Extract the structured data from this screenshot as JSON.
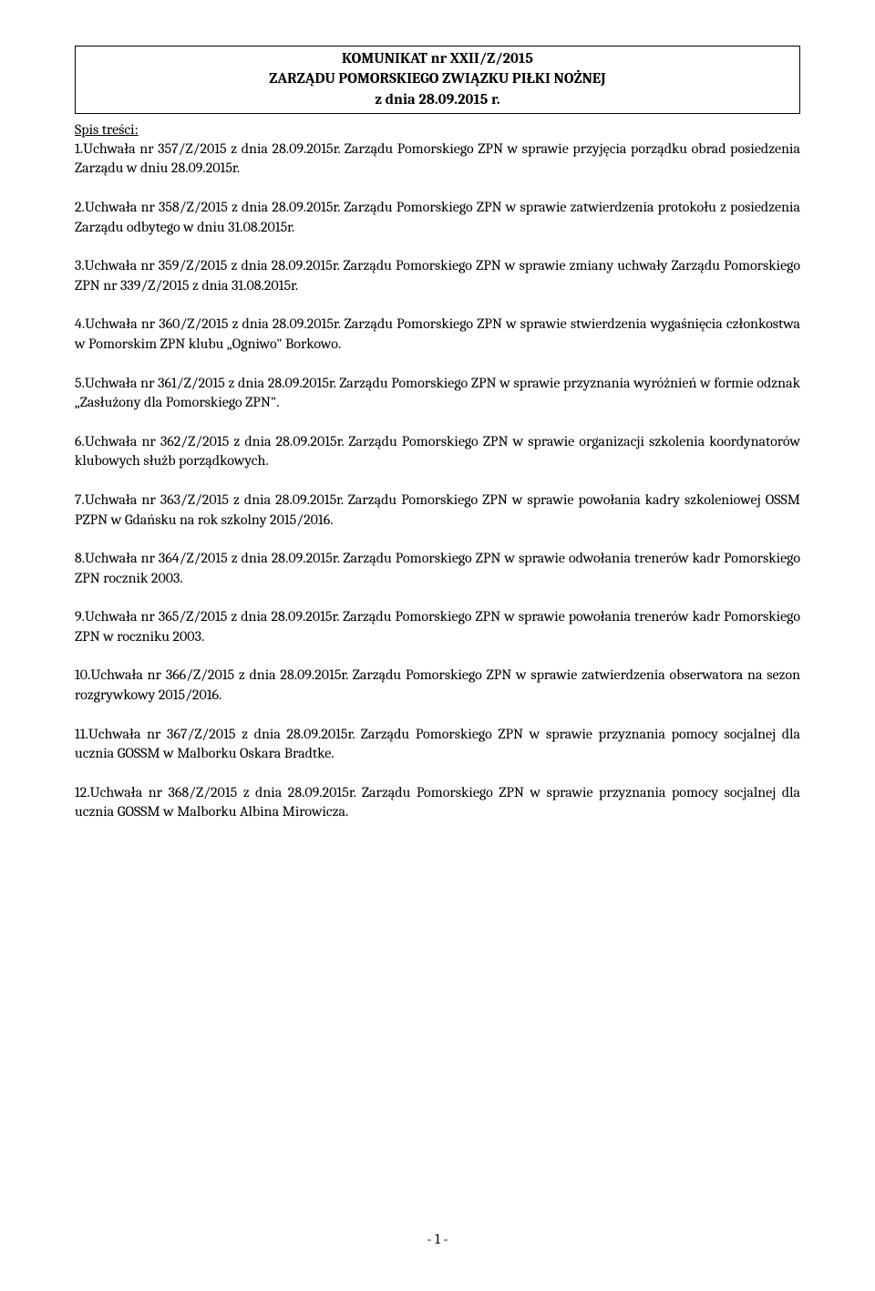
{
  "header": {
    "line1": "KOMUNIKAT nr XXII/Z/2015",
    "line2": "ZARZĄDU POMORSKIEGO ZWIĄZKU PIŁKI NOŻNEJ",
    "line3": "z dnia 28.09.2015 r."
  },
  "toc_title": "Spis treści:",
  "items": [
    "1.Uchwała nr 357/Z/2015 z dnia 28.09.2015r. Zarządu Pomorskiego ZPN w sprawie przyjęcia porządku obrad posiedzenia Zarządu w dniu 28.09.2015r.",
    "2.Uchwała nr 358/Z/2015 z dnia 28.09.2015r. Zarządu Pomorskiego ZPN w sprawie zatwierdzenia protokołu z posiedzenia Zarządu odbytego w dniu 31.08.2015r.",
    "3.Uchwała nr 359/Z/2015 z dnia 28.09.2015r. Zarządu Pomorskiego ZPN w sprawie zmiany uchwały Zarządu Pomorskiego ZPN nr 339/Z/2015 z dnia 31.08.2015r.",
    "4.Uchwała nr 360/Z/2015 z dnia 28.09.2015r. Zarządu Pomorskiego ZPN w sprawie stwierdzenia wygaśnięcia członkostwa w Pomorskim ZPN klubu „Ogniwo\" Borkowo.",
    "5.Uchwała nr 361/Z/2015 z dnia 28.09.2015r. Zarządu Pomorskiego ZPN w sprawie przyznania wyróżnień w formie odznak „Zasłużony dla Pomorskiego ZPN\".",
    "6.Uchwała nr 362/Z/2015 z dnia 28.09.2015r. Zarządu Pomorskiego ZPN w sprawie organizacji szkolenia koordynatorów klubowych służb porządkowych.",
    "7.Uchwała nr 363/Z/2015 z dnia 28.09.2015r. Zarządu Pomorskiego ZPN w sprawie powołania kadry szkoleniowej OSSM PZPN w Gdańsku na rok szkolny 2015/2016.",
    "8.Uchwała nr 364/Z/2015 z dnia 28.09.2015r. Zarządu Pomorskiego ZPN w sprawie odwołania trenerów kadr Pomorskiego ZPN rocznik 2003.",
    "9.Uchwała nr 365/Z/2015 z dnia 28.09.2015r. Zarządu Pomorskiego ZPN w sprawie powołania trenerów kadr Pomorskiego ZPN w roczniku 2003.",
    "10.Uchwała nr 366/Z/2015 z dnia 28.09.2015r. Zarządu Pomorskiego ZPN w sprawie zatwierdzenia obserwatora na sezon rozgrywkowy 2015/2016.",
    "11.Uchwała nr 367/Z/2015 z dnia 28.09.2015r. Zarządu Pomorskiego ZPN w sprawie przyznania pomocy socjalnej dla ucznia GOSSM w Malborku Oskara Bradtke.",
    "12.Uchwała nr 368/Z/2015 z dnia 28.09.2015r. Zarządu Pomorskiego ZPN w sprawie przyznania pomocy socjalnej dla ucznia GOSSM w Malborku Albina Mirowicza."
  ],
  "page_number": "- 1 -"
}
